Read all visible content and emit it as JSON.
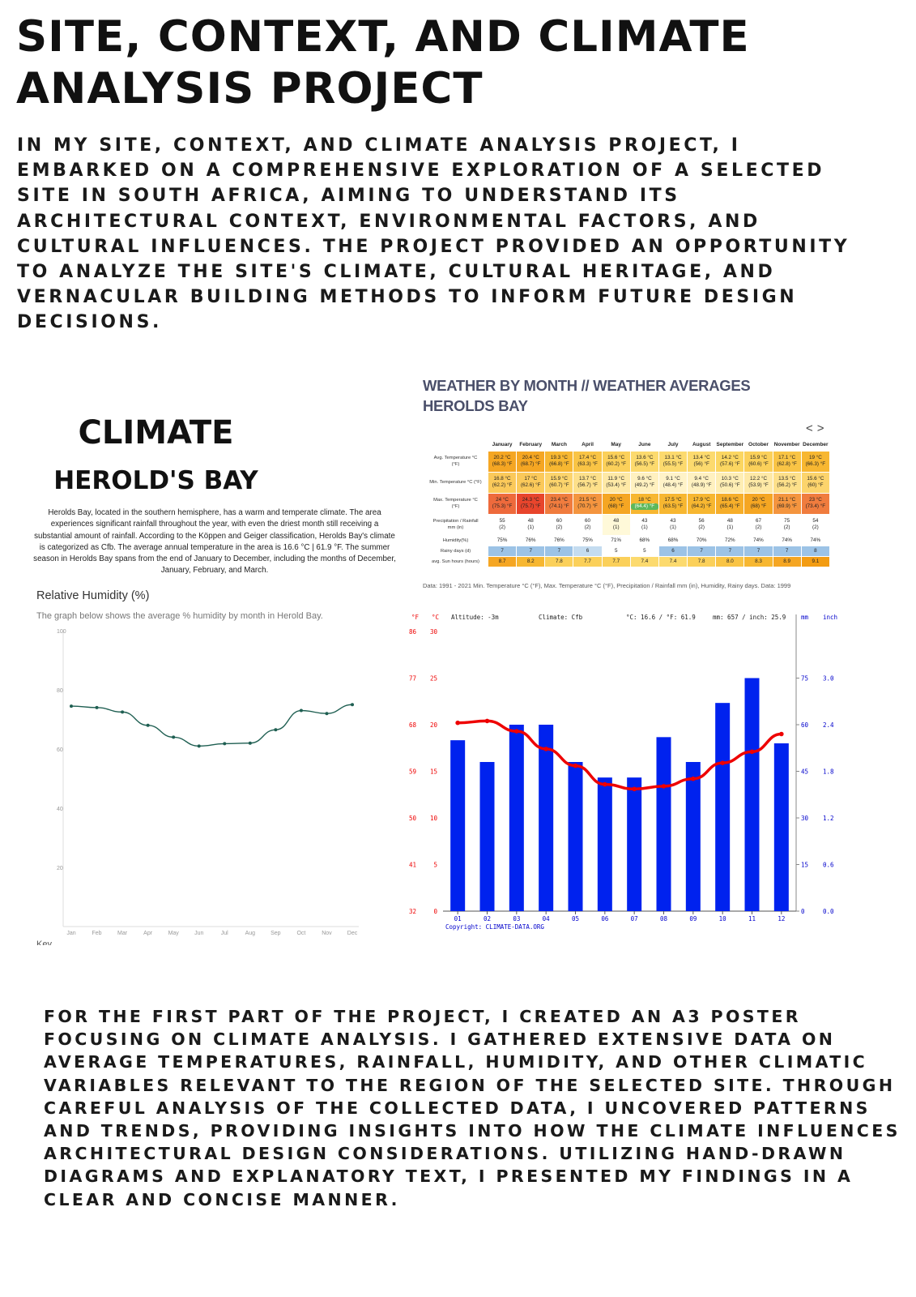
{
  "title": "SITE, CONTEXT, AND CLIMATE ANALYSIS PROJECT",
  "intro": "IN MY SITE, CONTEXT, AND CLIMATE ANALYSIS PROJECT, I EMBARKED ON A COMPREHENSIVE EXPLORATION OF A SELECTED SITE IN SOUTH AFRICA, AIMING TO UNDERSTAND ITS ARCHITECTURAL CONTEXT, ENVIRONMENTAL FACTORS, AND CULTURAL INFLUENCES. THE PROJECT PROVIDED AN OPPORTUNITY TO ANALYZE THE SITE'S CLIMATE, CULTURAL HERITAGE, AND VERNACULAR BUILDING METHODS TO INFORM FUTURE DESIGN DECISIONS.",
  "climate_panel": {
    "heading": "CLIMATE",
    "subheading": "HEROLD'S BAY",
    "description": "Herolds Bay, located in the southern hemisphere, has a warm and temperate climate. The area experiences significant rainfall throughout the year, with even the driest month still receiving a substantial amount of rainfall. According to the Köppen and Geiger classification, Herolds Bay's climate is categorized as Cfb. The average annual temperature in the area is 16.6 °C | 61.9 °F. The summer season in Herolds Bay spans from the end of January to December, including the months of December, January, February, and March.",
    "rh_title": "Relative Humidity (%)",
    "rh_subtitle": "The graph below shows the average % humidity by month in Herold Bay.",
    "key_label": "Key"
  },
  "weather_table": {
    "title_line1": "WEATHER BY MONTH // WEATHER AVERAGES",
    "title_line2": "HEROLDS BAY",
    "nav_prev": "<",
    "nav_next": ">",
    "months": [
      "January",
      "February",
      "March",
      "April",
      "May",
      "June",
      "July",
      "August",
      "September",
      "October",
      "November",
      "December"
    ],
    "rows": [
      {
        "label1": "Avg. Temperature °C",
        "label2": "(°F)",
        "v1": [
          "20.2 °C",
          "20.4 °C",
          "19.3 °C",
          "17.4 °C",
          "15.6 °C",
          "13.6 °C",
          "13.1 °C",
          "13.4 °C",
          "14.2 °C",
          "15.9 °C",
          "17.1 °C",
          "19 °C"
        ],
        "v2": [
          "(68.3) °F",
          "(68.7) °F",
          "(66.8) °F",
          "(63.3) °F",
          "(60.2) °F",
          "(56.5) °F",
          "(55.5) °F",
          "(56) °F",
          "(57.6) °F",
          "(60.6) °F",
          "(62.8) °F",
          "(66.3) °F"
        ],
        "colors": [
          "#f5a623",
          "#f5a623",
          "#f7b731",
          "#f9c445",
          "#fbd05a",
          "#fcda6e",
          "#fcda6e",
          "#fcda6e",
          "#fbd661",
          "#fbd05a",
          "#f9c445",
          "#f7b731"
        ]
      },
      {
        "label1": "Min. Temperature °C (°F)",
        "label2": "",
        "v1": [
          "16.8 °C",
          "17 °C",
          "15.9 °C",
          "13.7 °C",
          "11.9 °C",
          "9.6 °C",
          "9.1 °C",
          "9.4 °C",
          "10.3 °C",
          "12.2 °C",
          "13.5 °C",
          "15.6 °C"
        ],
        "v2": [
          "(62.2) °F",
          "(62.6) °F",
          "(60.7) °F",
          "(56.7) °F",
          "(53.4) °F",
          "(49.2) °F",
          "(48.4) °F",
          "(48.9) °F",
          "(50.6) °F",
          "(53.9) °F",
          "(56.2) °F",
          "(60) °F"
        ],
        "colors": [
          "#fbc95a",
          "#fbc95a",
          "#fcd46c",
          "#fde08a",
          "#fee9a6",
          "#fff1c0",
          "#fff3c8",
          "#fff1c0",
          "#feeeb4",
          "#fee9a6",
          "#fde08a",
          "#fcd46c"
        ]
      },
      {
        "label1": "Max. Temperature °C",
        "label2": "(°F)",
        "v1": [
          "24 °C",
          "24.3 °C",
          "23.4 °C",
          "21.5 °C",
          "20 °C",
          "18 °C",
          "17.5 °C",
          "17.9 °C",
          "18.6 °C",
          "20 °C",
          "21.1 °C",
          "23 °C"
        ],
        "v2": [
          "(75.3) °F",
          "(75.7) °F",
          "(74.1) °F",
          "(70.7) °F",
          "(68) °F",
          "(64.4) °F",
          "(63.5) °F",
          "(64.2) °F",
          "(65.4) °F",
          "(68) °F",
          "(69.9) °F",
          "(73.4) °F"
        ],
        "colors": [
          "#ee6a3c",
          "#e8452c",
          "#f07c3e",
          "#f4953f",
          "#f5a623",
          "#f7b731",
          "#f7b731",
          "#f7b731",
          "#f6ae2a",
          "#f5a623",
          "#f4953f",
          "#f07c3e"
        ]
      },
      {
        "label1": "Precipitation / Rainfall",
        "label2": "mm (in)",
        "v1": [
          "55",
          "48",
          "60",
          "60",
          "48",
          "43",
          "43",
          "56",
          "48",
          "67",
          "75",
          "54"
        ],
        "v2": [
          "(2)",
          "(1)",
          "(2)",
          "(2)",
          "(1)",
          "(1)",
          "(1)",
          "(2)",
          "(1)",
          "(2)",
          "(2)",
          "(2)"
        ],
        "colors": [
          "#ffffff",
          "#ffffff",
          "#ffffff",
          "#ffffff",
          "#fff9d9",
          "#ffffff",
          "#ffffff",
          "#ffffff",
          "#ffffff",
          "#ffffff",
          "#ffffff",
          "#ffffff"
        ]
      },
      {
        "label1": "Humidity(%)",
        "label2": "",
        "v1": [
          "75%",
          "76%",
          "76%",
          "75%",
          "71%",
          "68%",
          "68%",
          "70%",
          "72%",
          "74%",
          "74%",
          "74%"
        ],
        "v2": [
          "",
          "",
          "",
          "",
          "",
          "",
          "",
          "",
          "",
          "",
          "",
          ""
        ],
        "colors": [
          "#ffffff",
          "#ffffff",
          "#ffffff",
          "#ffffff",
          "#ffffff",
          "#ffffff",
          "#ffffff",
          "#ffffff",
          "#ffffff",
          "#ffffff",
          "#ffffff",
          "#ffffff"
        ]
      },
      {
        "label1": "Rainy days (d)",
        "label2": "",
        "v1": [
          "7",
          "7",
          "7",
          "6",
          "5",
          "5",
          "6",
          "7",
          "7",
          "7",
          "7",
          "8"
        ],
        "v2": [
          "",
          "",
          "",
          "",
          "",
          "",
          "",
          "",
          "",
          "",
          "",
          ""
        ],
        "colors": [
          "#9cc3e6",
          "#9cc3e6",
          "#9cc3e6",
          "#c4dcf0",
          "#ffffff",
          "#ffffff",
          "#9cc3e6",
          "#9cc3e6",
          "#9cc3e6",
          "#9cc3e6",
          "#9cc3e6",
          "#9cc3e6"
        ]
      },
      {
        "label1": "avg. Sun hours (hours)",
        "label2": "",
        "v1": [
          "8.7",
          "8.2",
          "7.8",
          "7.7",
          "7.7",
          "7.4",
          "7.4",
          "7.8",
          "8.0",
          "8.3",
          "8.9",
          "9.1"
        ],
        "v2": [
          "",
          "",
          "",
          "",
          "",
          "",
          "",
          "",
          "",
          "",
          "",
          ""
        ],
        "colors": [
          "#f5a623",
          "#f7b731",
          "#fbd05a",
          "#fbd05a",
          "#fbd05a",
          "#fcda6e",
          "#fcda6e",
          "#fbd05a",
          "#f9c445",
          "#f7b731",
          "#f5a623",
          "#f39c12"
        ]
      }
    ],
    "highlight": {
      "row": 2,
      "col": 5,
      "color": "#5cb85c"
    },
    "footer": "Data: 1991 - 2021 Min. Temperature °C (°F), Max. Temperature °C (°F), Precipitation / Rainfall mm (in), Humidity, Rainy days. Data: 1999"
  },
  "chart_data": [
    {
      "type": "line",
      "title": "Relative Humidity (%)",
      "subtitle": "The graph below shows the average % humidity by month in Herold Bay.",
      "categories": [
        "Jan",
        "Feb",
        "Mar",
        "Apr",
        "May",
        "Jun",
        "Jul",
        "Aug",
        "Sep",
        "Oct",
        "Nov",
        "Dec"
      ],
      "values": [
        74.5,
        74,
        72.5,
        68,
        64,
        61,
        61.8,
        62,
        66.5,
        73,
        72,
        75
      ],
      "ylim": [
        0,
        100
      ],
      "yticks": [
        20,
        40,
        60,
        80,
        100
      ],
      "color": "#1f5f52",
      "grid": false
    },
    {
      "type": "bar",
      "header": {
        "f_unit": "°F",
        "c_unit": "°C",
        "altitude": "Altitude: -3m",
        "climate": "Climate: Cfb",
        "avg": "°C: 16.6 / °F: 61.9",
        "precip": "mm: 657 / inch: 25.9",
        "mm_unit": "mm",
        "inch_unit": "inch"
      },
      "categories": [
        "01",
        "02",
        "03",
        "04",
        "05",
        "06",
        "07",
        "08",
        "09",
        "10",
        "11",
        "12"
      ],
      "rainfall_mm": [
        55,
        48,
        60,
        60,
        48,
        43,
        43,
        56,
        48,
        67,
        75,
        54
      ],
      "temperature_c": [
        20.2,
        20.4,
        19.3,
        17.4,
        15.6,
        13.6,
        13.1,
        13.4,
        14.2,
        15.9,
        17.1,
        19
      ],
      "c_ticks": [
        "30",
        "25",
        "20",
        "15",
        "10",
        "5",
        "0"
      ],
      "f_ticks": [
        "86",
        "77",
        "68",
        "59",
        "50",
        "41",
        "32"
      ],
      "mm_ticks": [
        "75",
        "60",
        "45",
        "30",
        "15",
        "0"
      ],
      "inch_ticks": [
        "3.0",
        "2.4",
        "1.8",
        "1.2",
        "0.6",
        "0.0"
      ],
      "ylim_c": [
        0,
        30
      ],
      "ylim_mm": [
        0,
        90
      ],
      "bar_color": "#0022ee",
      "line_color": "#ee0000",
      "copyright": "Copyright: CLIMATE-DATA.ORG"
    }
  ],
  "outro": "FOR THE FIRST PART OF THE PROJECT, I CREATED AN A3 POSTER FOCUSING ON CLIMATE ANALYSIS. I GATHERED EXTENSIVE DATA ON AVERAGE TEMPERATURES, RAINFALL, HUMIDITY, AND OTHER CLIMATIC VARIABLES RELEVANT TO THE REGION OF THE SELECTED SITE. THROUGH CAREFUL ANALYSIS OF THE COLLECTED DATA, I UNCOVERED PATTERNS AND TRENDS, PROVIDING INSIGHTS INTO HOW THE CLIMATE INFLUENCES ARCHITECTURAL DESIGN CONSIDERATIONS. UTILIZING HAND-DRAWN DIAGRAMS AND EXPLANATORY TEXT, I PRESENTED MY FINDINGS IN A CLEAR AND CONCISE MANNER."
}
